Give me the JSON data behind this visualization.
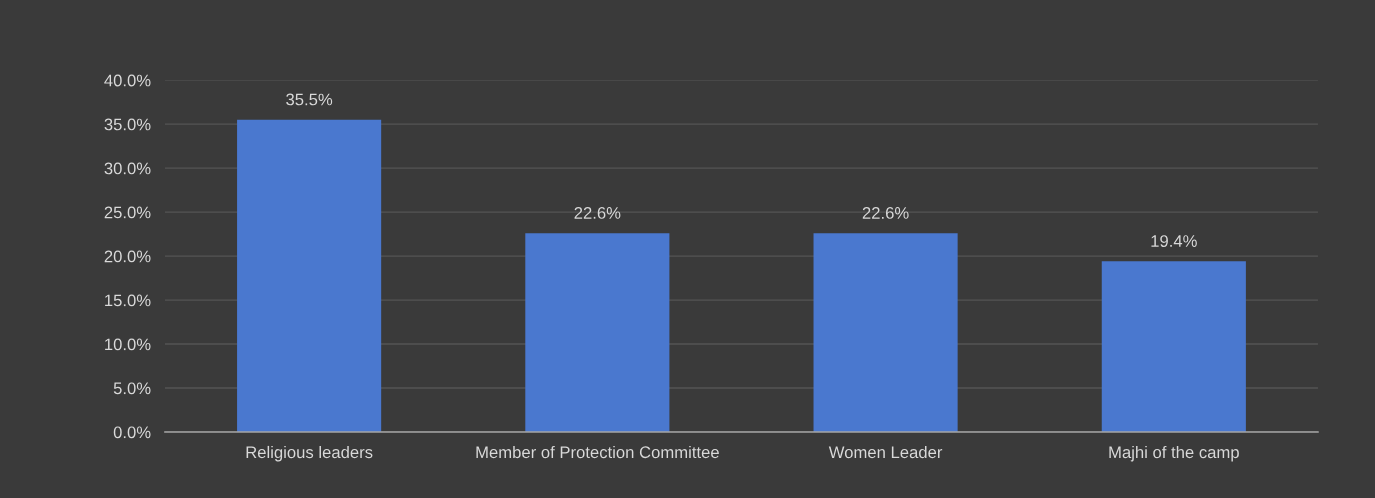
{
  "chart_data": {
    "type": "bar",
    "categories": [
      "Religious leaders",
      "Member of Protection Committee",
      "Women Leader",
      "Majhi of the camp"
    ],
    "values": [
      35.5,
      22.6,
      22.6,
      19.4
    ],
    "value_labels": [
      "35.5%",
      "22.6%",
      "22.6%",
      "19.4%"
    ],
    "color": "#4a78cf",
    "ylim": [
      0,
      40
    ],
    "yticks": [
      {
        "value": 0,
        "label": "0.0%"
      },
      {
        "value": 5,
        "label": "5.0%"
      },
      {
        "value": 10,
        "label": "10.0%"
      },
      {
        "value": 15,
        "label": "15.0%"
      },
      {
        "value": 20,
        "label": "20.0%"
      },
      {
        "value": 25,
        "label": "25.0%"
      },
      {
        "value": 30,
        "label": "30.0%"
      },
      {
        "value": 35,
        "label": "35.0%"
      },
      {
        "value": 40,
        "label": "40.0%"
      }
    ],
    "grid": "y"
  }
}
